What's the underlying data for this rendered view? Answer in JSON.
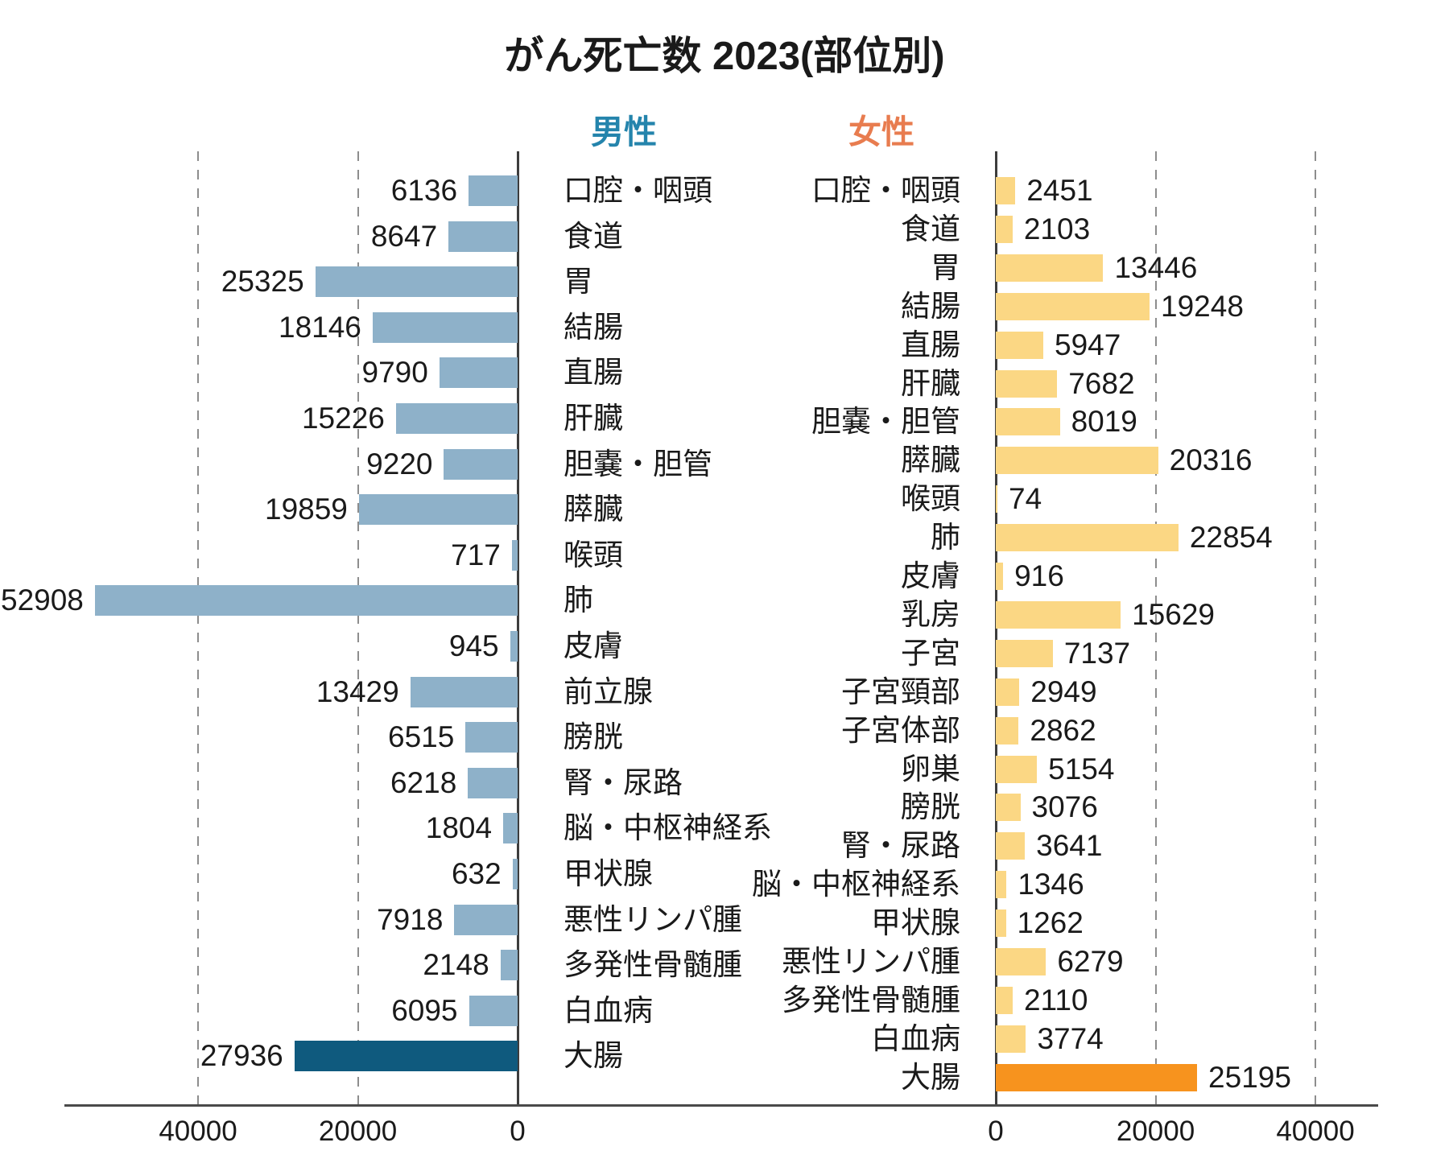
{
  "chart_data": {
    "type": "bar",
    "variant": "diverging-horizontal",
    "title": "がん死亡数 2023(部位別)",
    "grid": {
      "interval": 20000,
      "per_side_max": 40000,
      "style": "dashed"
    },
    "ticks": {
      "left": [
        {
          "label": "40000",
          "value": 40000
        },
        {
          "label": "20000",
          "value": 20000
        },
        {
          "label": "0",
          "value": 0
        }
      ],
      "right": [
        {
          "label": "0",
          "value": 0
        },
        {
          "label": "20000",
          "value": 20000
        },
        {
          "label": "40000",
          "value": 40000
        }
      ]
    },
    "male": {
      "legend": "男性",
      "legend_color": "#2484AC",
      "bar_color": "#8EB1C9",
      "emphasis_color": "#0F5A7E",
      "rows": [
        [
          "口腔・咽頭",
          6136
        ],
        [
          "食道",
          8647
        ],
        [
          "胃",
          25325
        ],
        [
          "結腸",
          18146
        ],
        [
          "直腸",
          9790
        ],
        [
          "肝臓",
          15226
        ],
        [
          "胆嚢・胆管",
          9220
        ],
        [
          "膵臓",
          19859
        ],
        [
          "喉頭",
          717
        ],
        [
          "肺",
          52908
        ],
        [
          "皮膚",
          945
        ],
        [
          "前立腺",
          13429
        ],
        [
          "膀胱",
          6515
        ],
        [
          "腎・尿路",
          6218
        ],
        [
          "脳・中枢神経系",
          1804
        ],
        [
          "甲状腺",
          632
        ],
        [
          "悪性リンパ腫",
          7918
        ],
        [
          "多発性骨髄腫",
          2148
        ],
        [
          "白血病",
          6095
        ],
        [
          "大腸",
          27936,
          "emphasis"
        ]
      ]
    },
    "female": {
      "legend": "女性",
      "legend_color": "#E87C4F",
      "bar_color": "#FBD784",
      "emphasis_color": "#F7931E",
      "rows": [
        [
          "口腔・咽頭",
          2451
        ],
        [
          "食道",
          2103
        ],
        [
          "胃",
          13446
        ],
        [
          "結腸",
          19248
        ],
        [
          "直腸",
          5947
        ],
        [
          "肝臓",
          7682
        ],
        [
          "胆嚢・胆管",
          8019
        ],
        [
          "膵臓",
          20316
        ],
        [
          "喉頭",
          74
        ],
        [
          "肺",
          22854
        ],
        [
          "皮膚",
          916
        ],
        [
          "乳房",
          15629
        ],
        [
          "子宮",
          7137
        ],
        [
          "子宮頸部",
          2949
        ],
        [
          "子宮体部",
          2862
        ],
        [
          "卵巣",
          5154
        ],
        [
          "膀胱",
          3076
        ],
        [
          "腎・尿路",
          3641
        ],
        [
          "脳・中枢神経系",
          1346
        ],
        [
          "甲状腺",
          1262
        ],
        [
          "悪性リンパ腫",
          6279
        ],
        [
          "多発性骨髄腫",
          2110
        ],
        [
          "白血病",
          3774
        ],
        [
          "大腸",
          25195,
          "emphasis"
        ]
      ]
    }
  }
}
